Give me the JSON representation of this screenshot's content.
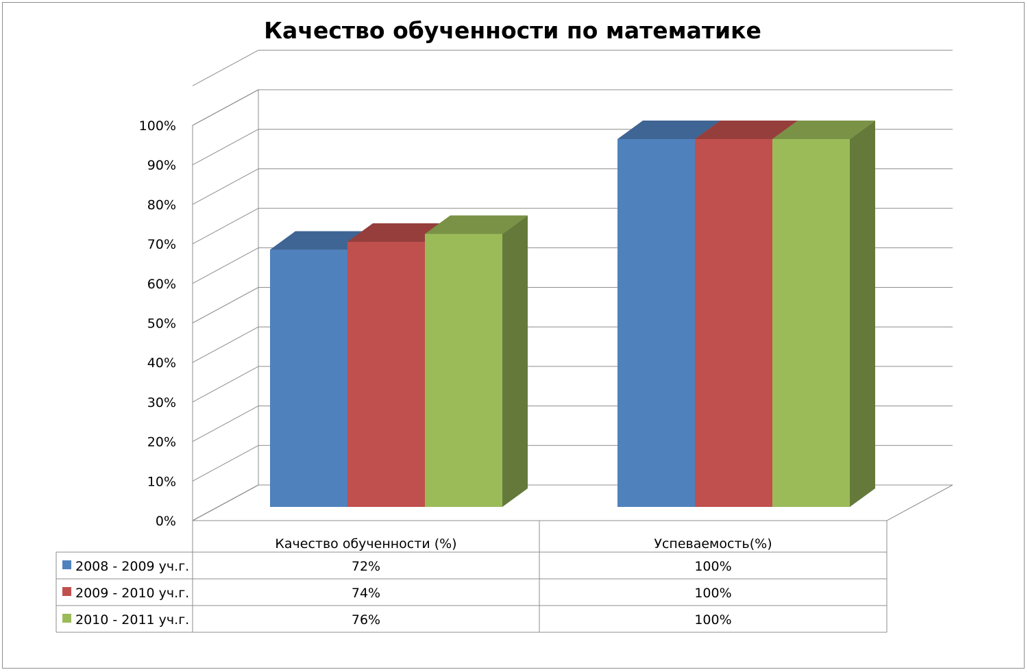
{
  "chart_data": {
    "type": "bar",
    "title": "Качество обученности по математике",
    "categories": [
      "Качество обученности (%)",
      "Успеваемость(%)"
    ],
    "series": [
      {
        "name": "2008 - 2009 уч.г.",
        "values": [
          72,
          100
        ],
        "labels": [
          "72%",
          "100%"
        ],
        "color": "#4f81bd"
      },
      {
        "name": "2009 - 2010 уч.г.",
        "values": [
          74,
          100
        ],
        "labels": [
          "74%",
          "100%"
        ],
        "color": "#c0504d"
      },
      {
        "name": "2010 - 2011 уч.г.",
        "values": [
          76,
          100
        ],
        "labels": [
          "76%",
          "100%"
        ],
        "color": "#9bbb59"
      }
    ],
    "ylim": [
      0,
      100
    ],
    "y_ticks": [
      "0%",
      "10%",
      "20%",
      "30%",
      "40%",
      "50%",
      "60%",
      "70%",
      "80%",
      "90%",
      "100%"
    ],
    "grid": true,
    "legend": "data table below chart",
    "style": "3d clustered column"
  }
}
